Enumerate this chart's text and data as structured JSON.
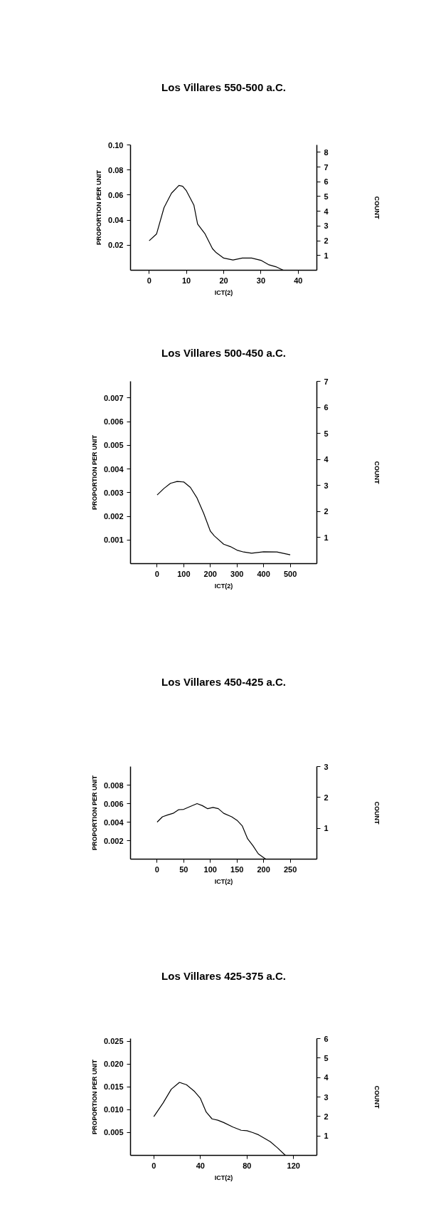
{
  "chart_data": [
    {
      "type": "line",
      "title": "Los Villares 550-500 a.C.",
      "xlabel": "ICT(2)",
      "ylabel": "PROPORTION PER UNIT",
      "y2label": "COUNT",
      "color": "#000000",
      "grid": false,
      "x": [
        0,
        2,
        4,
        6,
        8,
        9,
        10,
        12,
        13,
        15,
        17,
        18,
        20,
        22.5,
        25,
        27.5,
        30,
        32,
        34,
        36
      ],
      "values": [
        0.0235,
        0.029,
        0.05,
        0.0615,
        0.0677,
        0.067,
        0.0634,
        0.052,
        0.0368,
        0.029,
        0.0172,
        0.014,
        0.0097,
        0.0082,
        0.0097,
        0.0097,
        0.0079,
        0.0045,
        0.0028,
        0.0
      ],
      "xlim": [
        -5,
        45
      ],
      "xticks": [
        0,
        10,
        20,
        30,
        40
      ],
      "ylim": [
        0,
        0.1
      ],
      "yticks": [
        0.02,
        0.04,
        0.06,
        0.08,
        {
          "value": 0.1,
          "label": "0.10"
        }
      ],
      "y2lim": [
        0,
        8.5
      ],
      "y2ticks": [
        1,
        2,
        3,
        4,
        5,
        6,
        7,
        8
      ]
    },
    {
      "type": "line",
      "title": "Los Villares 500-450 a.C.",
      "xlabel": "ICT(2)",
      "ylabel": "PROPORTION PER UNIT",
      "y2label": "COUNT",
      "color": "#000000",
      "grid": false,
      "x": [
        0,
        25,
        50,
        75,
        100,
        125,
        150,
        175,
        200,
        215,
        250,
        275,
        300,
        325,
        355,
        400,
        450,
        500
      ],
      "values": [
        0.0029,
        0.00317,
        0.00339,
        0.00347,
        0.00345,
        0.00322,
        0.00277,
        0.00212,
        0.00137,
        0.00117,
        0.00082,
        0.00072,
        0.00057,
        0.00049,
        0.00044,
        0.0005,
        0.00049,
        0.00037
      ],
      "xlim": [
        -100,
        600
      ],
      "xticks": [
        0,
        100,
        200,
        300,
        400,
        500
      ],
      "ylim": [
        0,
        0.0077
      ],
      "yticks": [
        0.001,
        0.002,
        0.003,
        0.004,
        0.005,
        0.006,
        0.007
      ],
      "y2lim": [
        0,
        7
      ],
      "y2ticks": [
        1,
        2,
        3,
        4,
        5,
        6,
        7
      ]
    },
    {
      "type": "line",
      "title": "Los Villares 450-425 a.C.",
      "xlabel": "ICT(2)",
      "ylabel": "PROPORTION PER UNIT",
      "y2label": "COUNT",
      "color": "#000000",
      "grid": false,
      "x": [
        0,
        10,
        20,
        30,
        40,
        50,
        60,
        75,
        85,
        95,
        105,
        115,
        125,
        140,
        150,
        160,
        170,
        180,
        190,
        204
      ],
      "values": [
        0.004,
        0.00458,
        0.00478,
        0.00495,
        0.00533,
        0.00538,
        0.00563,
        0.006,
        0.00578,
        0.00545,
        0.00558,
        0.00545,
        0.00495,
        0.00458,
        0.0042,
        0.00358,
        0.0022,
        0.00145,
        0.00058,
        0.0
      ],
      "xlim": [
        -50,
        300
      ],
      "xticks": [
        0,
        50,
        100,
        150,
        200,
        250
      ],
      "ylim": [
        0,
        0.01
      ],
      "yticks": [
        0.002,
        0.004,
        0.006,
        0.008
      ],
      "y2lim": [
        0,
        3
      ],
      "y2ticks": [
        1,
        2,
        3
      ]
    },
    {
      "type": "line",
      "title": "Los Villares 425-375 a.C.",
      "xlabel": "ICT(2)",
      "ylabel": "PROPORTION PER UNIT",
      "y2label": "COUNT",
      "color": "#000000",
      "grid": false,
      "x": [
        0,
        8,
        15,
        22,
        28,
        35,
        40,
        45,
        50,
        55,
        60,
        68,
        75,
        80,
        85,
        90,
        100,
        106,
        113
      ],
      "values": [
        0.0085,
        0.0115,
        0.0145,
        0.016,
        0.0155,
        0.014,
        0.0125,
        0.0095,
        0.008,
        0.0077,
        0.0072,
        0.0062,
        0.0055,
        0.0054,
        0.005,
        0.0045,
        0.003,
        0.0017,
        0.0
      ],
      "xlim": [
        -20,
        140
      ],
      "xticks": [
        0,
        40,
        80,
        120
      ],
      "ylim": [
        0,
        0.0256
      ],
      "yticks": [
        0.005,
        {
          "value": 0.01,
          "label": "0.010"
        },
        0.015,
        {
          "value": 0.02,
          "label": "0.020"
        },
        0.025
      ],
      "y2lim": [
        0,
        6
      ],
      "y2ticks": [
        1,
        2,
        3,
        4,
        5,
        6
      ]
    }
  ]
}
